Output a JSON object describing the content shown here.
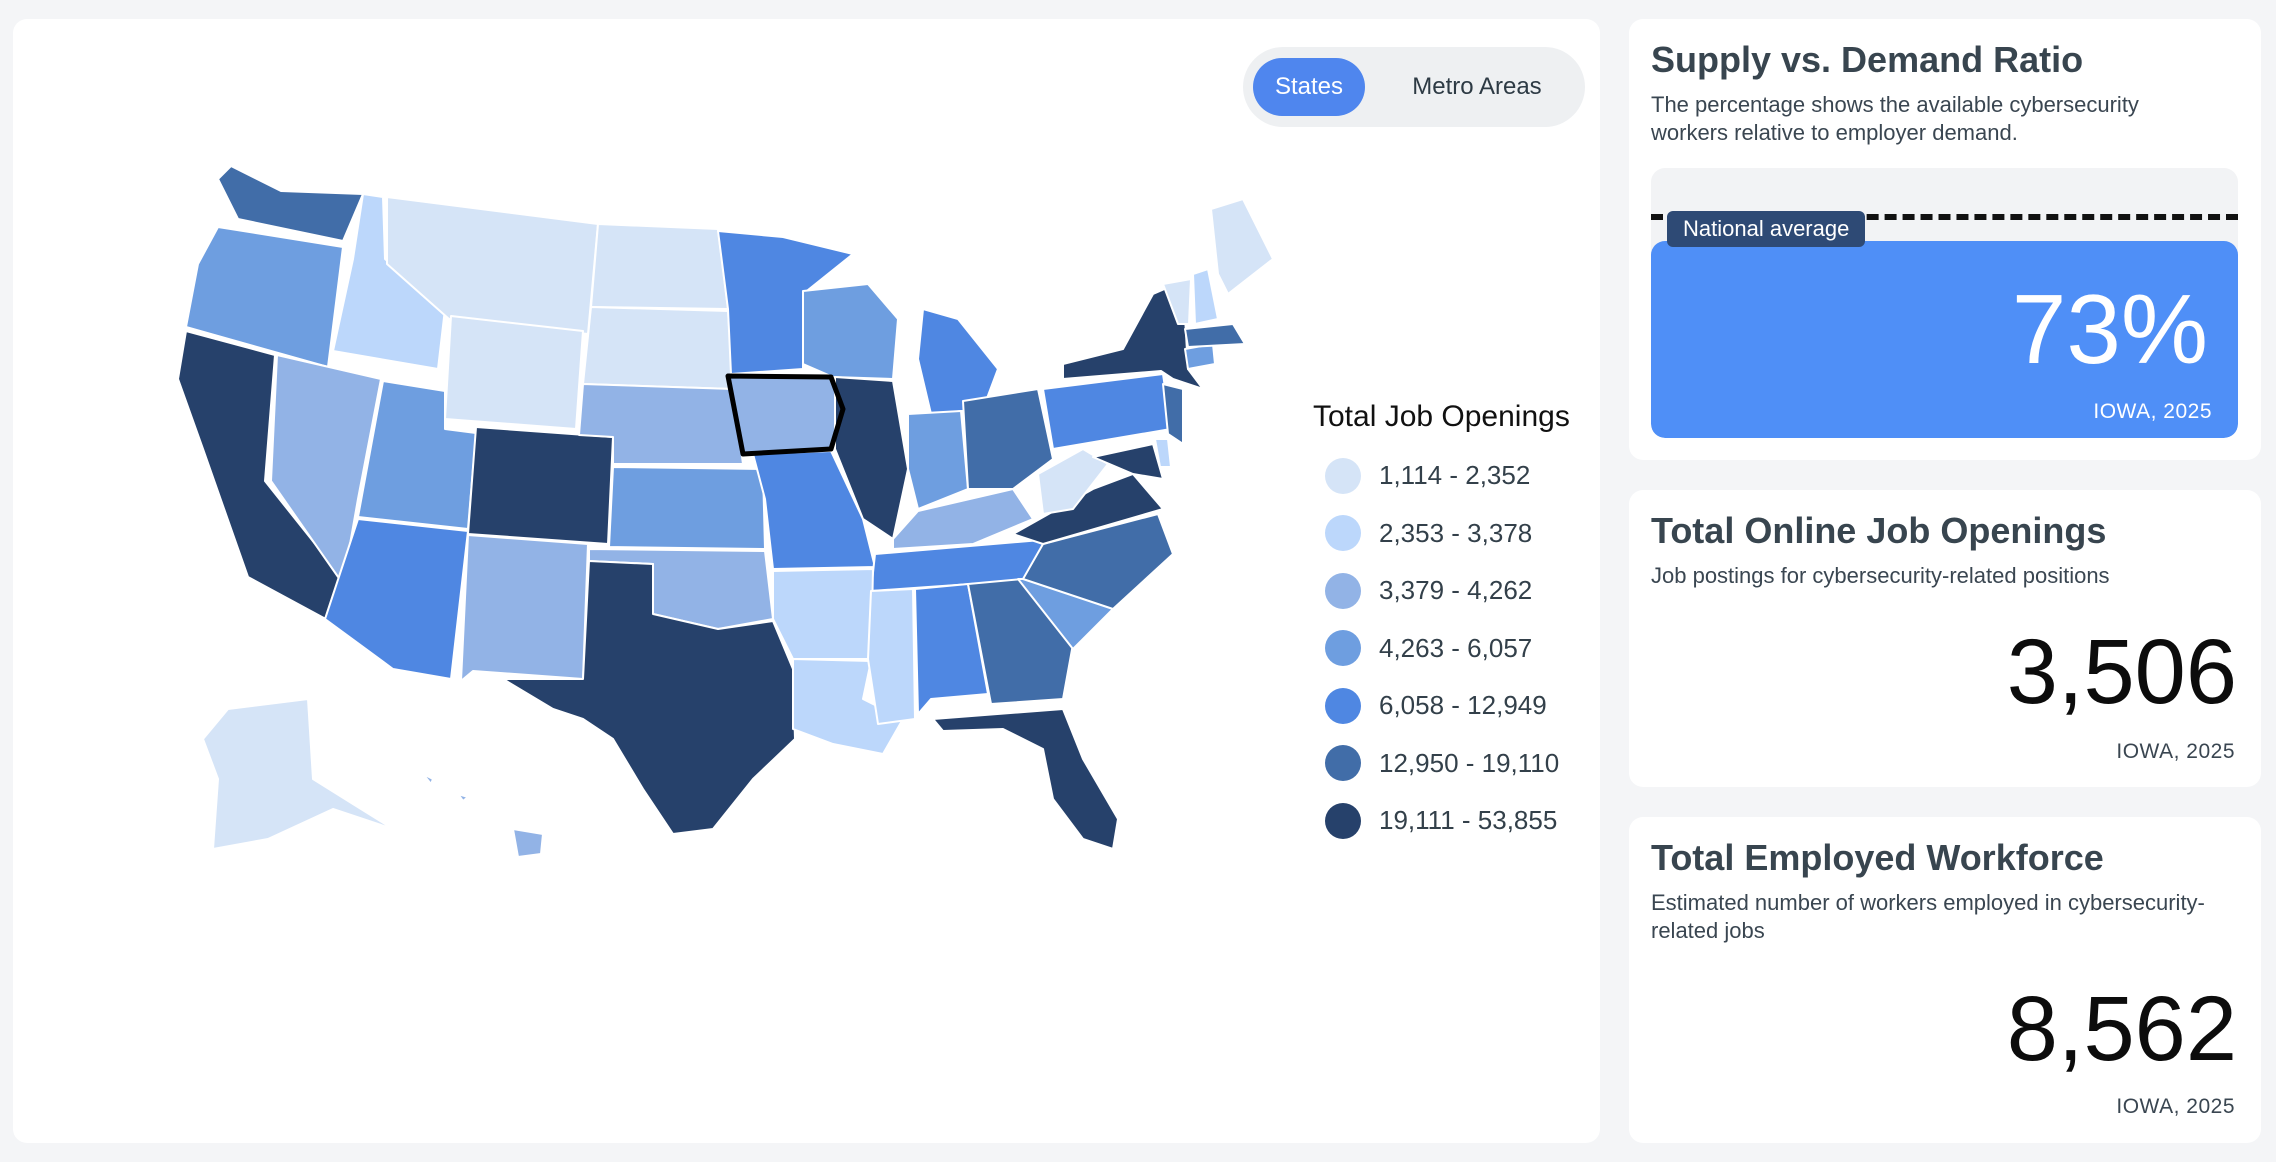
{
  "map": {
    "toggle": {
      "states_label": "States",
      "metro_label": "Metro Areas",
      "active": "States"
    },
    "highlighted_state": "Iowa",
    "legend": {
      "title": "Total Job Openings",
      "items": [
        {
          "label": "1,114 - 2,352",
          "color": "#d5e4f7"
        },
        {
          "label": "2,353 - 3,378",
          "color": "#bcd7fb"
        },
        {
          "label": "3,379 - 4,262",
          "color": "#92b3e6"
        },
        {
          "label": "4,263 - 6,057",
          "color": "#6e9ee0"
        },
        {
          "label": "6,058 - 12,949",
          "color": "#4f87e2"
        },
        {
          "label": "12,950 - 19,110",
          "color": "#416da8"
        },
        {
          "label": "19,111 - 53,855",
          "color": "#26416b"
        }
      ]
    }
  },
  "supply_demand": {
    "title": "Supply vs. Demand Ratio",
    "description": "The percentage shows the available cybersecurity workers relative to employer demand.",
    "national_average_label": "National average",
    "value_label": "73%",
    "value_fraction": 0.73,
    "national_average_fraction": 0.82,
    "subtitle": "IOWA, 2025",
    "fill_color": "#4f8ff7"
  },
  "job_openings": {
    "title": "Total Online Job Openings",
    "description": "Job postings for cybersecurity-related positions",
    "value": "3,506",
    "subtitle": "IOWA, 2025"
  },
  "workforce": {
    "title": "Total Employed Workforce",
    "description": "Estimated number of workers employed in cybersecurity-related jobs",
    "value": "8,562",
    "subtitle": "IOWA, 2025"
  }
}
